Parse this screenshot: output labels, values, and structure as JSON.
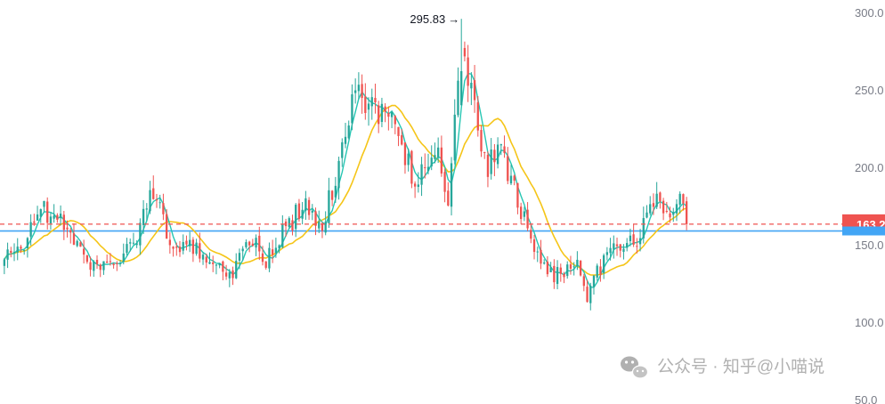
{
  "chart_data": {
    "type": "candlestick",
    "y_axis": {
      "ticks": [
        "300.0",
        "250.0",
        "200.0",
        "150.0",
        "100.0",
        "50.0"
      ],
      "tick_values": [
        300,
        250,
        200,
        150,
        100,
        50
      ],
      "range": [
        47,
        308
      ],
      "position": "right"
    },
    "grid": false,
    "annotations": {
      "high_label": "295.83",
      "high_value": 295.83,
      "last_price_label": "163.2",
      "last_price": 163.2
    },
    "reference_line": {
      "value": 158.8
    },
    "series_anchors": [
      {
        "i": 0,
        "v": 140
      },
      {
        "i": 6,
        "v": 150
      },
      {
        "i": 10,
        "v": 175
      },
      {
        "i": 14,
        "v": 168
      },
      {
        "i": 20,
        "v": 160
      },
      {
        "i": 26,
        "v": 133
      },
      {
        "i": 31,
        "v": 140
      },
      {
        "i": 38,
        "v": 145
      },
      {
        "i": 44,
        "v": 180
      },
      {
        "i": 47,
        "v": 175
      },
      {
        "i": 51,
        "v": 142
      },
      {
        "i": 58,
        "v": 150
      },
      {
        "i": 62,
        "v": 140
      },
      {
        "i": 68,
        "v": 130
      },
      {
        "i": 74,
        "v": 155
      },
      {
        "i": 79,
        "v": 140
      },
      {
        "i": 85,
        "v": 160
      },
      {
        "i": 90,
        "v": 175
      },
      {
        "i": 96,
        "v": 160
      },
      {
        "i": 100,
        "v": 195
      },
      {
        "i": 106,
        "v": 252
      },
      {
        "i": 112,
        "v": 238
      },
      {
        "i": 118,
        "v": 225
      },
      {
        "i": 124,
        "v": 192
      },
      {
        "i": 128,
        "v": 200
      },
      {
        "i": 131,
        "v": 210
      },
      {
        "i": 134,
        "v": 180
      },
      {
        "i": 138,
        "v": 270
      },
      {
        "i": 142,
        "v": 238
      },
      {
        "i": 146,
        "v": 200
      },
      {
        "i": 150,
        "v": 210
      },
      {
        "i": 154,
        "v": 185
      },
      {
        "i": 160,
        "v": 145
      },
      {
        "i": 166,
        "v": 130
      },
      {
        "i": 172,
        "v": 140
      },
      {
        "i": 176,
        "v": 118
      },
      {
        "i": 180,
        "v": 135
      },
      {
        "i": 186,
        "v": 150
      },
      {
        "i": 191,
        "v": 150
      },
      {
        "i": 196,
        "v": 180
      },
      {
        "i": 200,
        "v": 170
      },
      {
        "i": 204,
        "v": 180
      },
      {
        "i": 206,
        "v": 168
      }
    ],
    "n_candles": 207,
    "colors": {
      "up": "#26a69a",
      "down": "#ef5350",
      "ma_fast": "#26c6b3",
      "ma_slow": "#f5c518",
      "reference_line": "#42a5f5",
      "last_price": "#ef5350",
      "axis_text": "#787b86"
    }
  },
  "watermark": {
    "icon": "wechat-icon",
    "text": "公众号 · 知乎@小喵说"
  }
}
